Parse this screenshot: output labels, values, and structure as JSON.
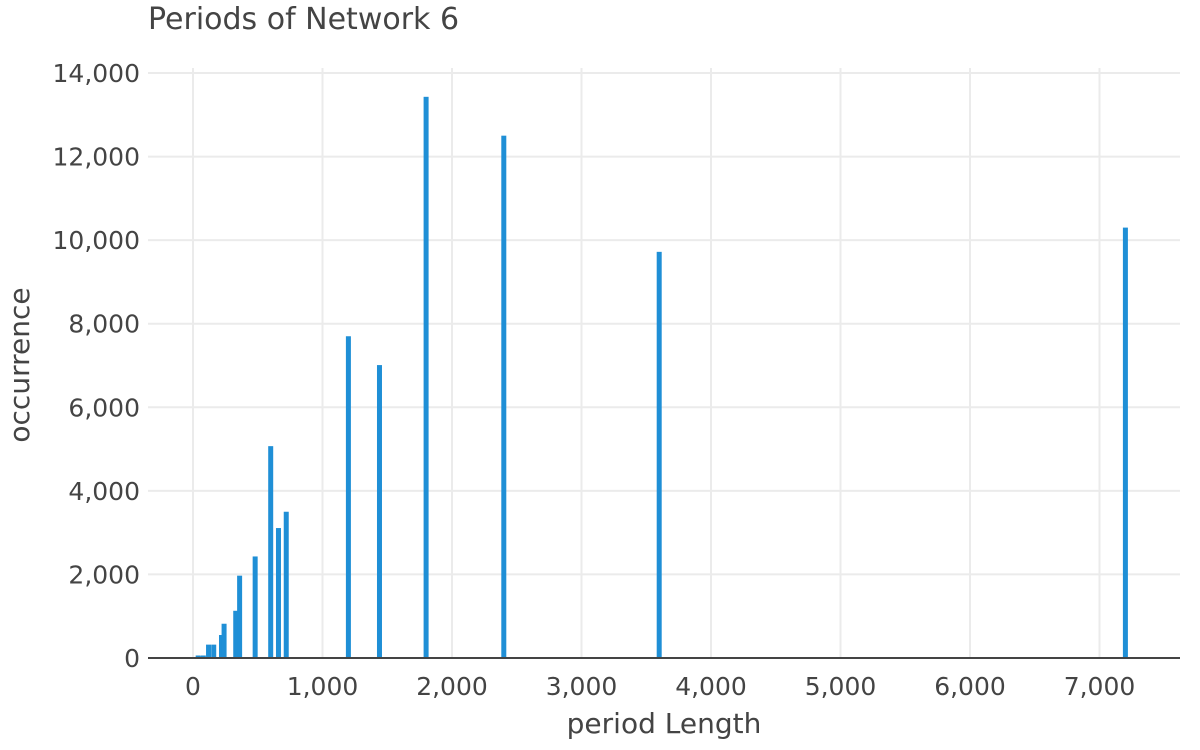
{
  "chart_data": {
    "type": "bar",
    "title": "Periods of Network 6",
    "xlabel": "period Length",
    "ylabel": "occurrence",
    "xlim": [
      -350,
      7600
    ],
    "ylim": [
      0,
      14000
    ],
    "x_ticks": [
      0,
      1000,
      2000,
      3000,
      4000,
      5000,
      6000,
      7000
    ],
    "y_ticks": [
      0,
      2000,
      4000,
      6000,
      8000,
      10000,
      12000,
      14000
    ],
    "x_tick_labels": [
      "0",
      "1,000",
      "2,000",
      "3,000",
      "4,000",
      "5,000",
      "6,000",
      "7,000"
    ],
    "y_tick_labels": [
      "0",
      "2,000",
      "4,000",
      "6,000",
      "8,000",
      "10,000",
      "12,000",
      "14,000"
    ],
    "grid": true,
    "bar_color": "#1f8fd6",
    "series": [
      {
        "x": [
          20,
          40,
          60,
          80,
          120,
          160,
          220,
          240,
          330,
          360,
          480,
          600,
          660,
          720,
          1200,
          1440,
          1800,
          2400,
          3600,
          7200
        ],
        "values": [
          20,
          60,
          40,
          60,
          320,
          320,
          550,
          820,
          1130,
          1970,
          2430,
          5070,
          3110,
          3500,
          7700,
          7010,
          13430,
          12500,
          9720,
          10300
        ]
      }
    ]
  }
}
